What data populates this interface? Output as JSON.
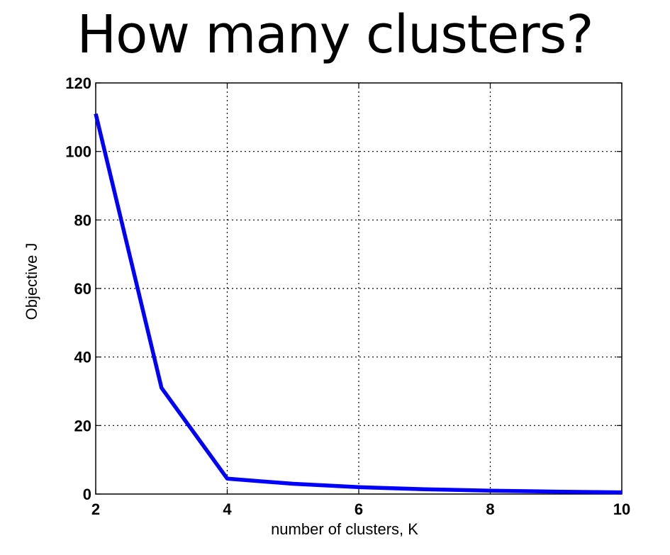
{
  "page": {
    "title": "How many clusters?"
  },
  "chart_data": {
    "type": "line",
    "title": "",
    "xlabel": "number of clusters, K",
    "ylabel": "Objective J",
    "xlim": [
      2,
      10
    ],
    "ylim": [
      0,
      120
    ],
    "xticks": [
      "2",
      "4",
      "6",
      "8",
      "10"
    ],
    "yticks": [
      "0",
      "20",
      "40",
      "60",
      "80",
      "100",
      "120"
    ],
    "grid": true,
    "series": [
      {
        "color": "#0000ff",
        "x": [
          2,
          3,
          4,
          5,
          6,
          7,
          8,
          9,
          10
        ],
        "y": [
          111,
          31,
          4.5,
          3,
          2,
          1.4,
          1.0,
          0.7,
          0.5
        ]
      }
    ]
  }
}
